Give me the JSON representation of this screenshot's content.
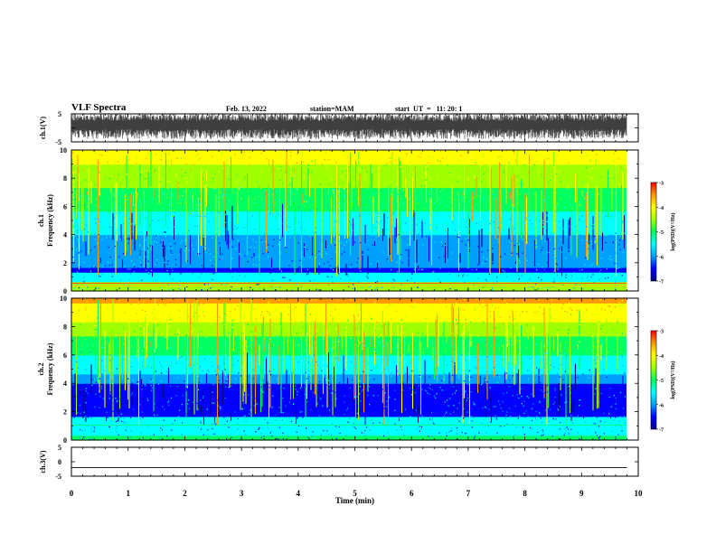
{
  "header": {
    "title": "VLF Spectra",
    "date": "Feb. 13, 2022",
    "station": "station=MAM",
    "start": "start  UT  =   11: 20: 1"
  },
  "chart_data": [
    {
      "type": "line",
      "panel": "ch.1 waveform",
      "ylabel": "ch.1(V)",
      "ylim": [
        -5,
        5
      ],
      "yticks": [
        "5",
        "-5"
      ],
      "description_values": {
        "typical_min": -4,
        "typical_max": 5
      }
    },
    {
      "type": "heatmap",
      "panel": "ch.1 spectrogram",
      "ylabel": "ch.1\nFrequency (kHz)",
      "ylabel_top": "ch.1",
      "ylabel_bottom": "Frequency (kHz)",
      "ylim": [
        0,
        10
      ],
      "yticks": [
        "0",
        "2",
        "4",
        "6",
        "8",
        "10"
      ],
      "colorbar": {
        "label": "log(PSD)(V²/Hz)",
        "range": [
          -7,
          -3
        ],
        "ticks": [
          "-3",
          "-4",
          "-5",
          "-6",
          "-7"
        ]
      }
    },
    {
      "type": "heatmap",
      "panel": "ch.2 spectrogram",
      "ylabel_top": "ch.2",
      "ylabel_bottom": "Frequency (kHz)",
      "ylim": [
        0,
        10
      ],
      "yticks": [
        "0",
        "2",
        "4",
        "6",
        "8",
        "10"
      ],
      "colorbar": {
        "label": "log(PSD)(V²/Hz)",
        "range": [
          -7,
          -3
        ],
        "ticks": [
          "-3",
          "-4",
          "-5",
          "-6",
          "-7"
        ]
      }
    },
    {
      "type": "line",
      "panel": "ch.3 waveform",
      "ylabel": "ch.3(V)",
      "ylim": [
        -5,
        5
      ],
      "yticks": [
        "5",
        "0",
        "-5"
      ],
      "series": [
        {
          "x": [
            0,
            9.8
          ],
          "values": [
            -2,
            -2
          ]
        }
      ]
    }
  ],
  "xaxis": {
    "xlabel": "Time  (min)",
    "xlim": [
      0,
      10
    ],
    "ticks": [
      "0",
      "1",
      "2",
      "3",
      "4",
      "5",
      "6",
      "7",
      "8",
      "9",
      "10"
    ],
    "data_end": 9.8
  },
  "colormap": [
    "#00008c",
    "#0000ff",
    "#00a0ff",
    "#00ffff",
    "#00ff60",
    "#a0ff00",
    "#ffff00",
    "#ff9a00",
    "#ff0000"
  ]
}
